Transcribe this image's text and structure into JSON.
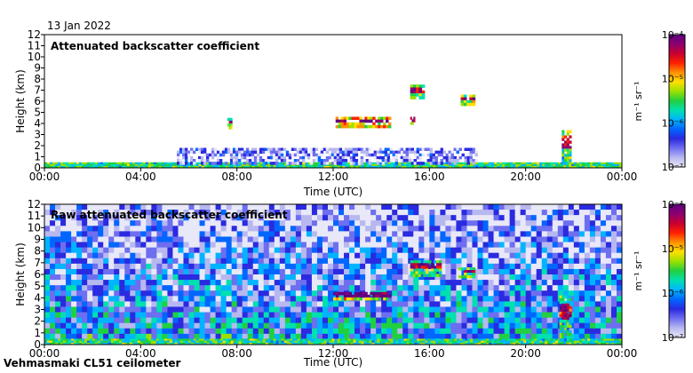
{
  "date": "13 Jan 2022",
  "footer": "Vehmasmaki CL51 ceilometer",
  "colors": {
    "scale": [
      "#e8e8f8",
      "#b8b8f0",
      "#6e6ef0",
      "#2a2ae0",
      "#0066ff",
      "#00b4ff",
      "#00e0b0",
      "#20d040",
      "#9be000",
      "#ffe000",
      "#ff9000",
      "#ff2000",
      "#c80030",
      "#8c0070",
      "#600080"
    ]
  },
  "chart_data": [
    {
      "type": "heatmap",
      "title": "Attenuated backscatter coefficient",
      "xlabel": "Time (UTC)",
      "ylabel": "Height (km)",
      "x_ticks": [
        "00:00",
        "04:00",
        "08:00",
        "12:00",
        "16:00",
        "20:00",
        "00:00"
      ],
      "x_range_hours": [
        0,
        24
      ],
      "y_ticks": [
        "0",
        "1",
        "2",
        "3",
        "4",
        "5",
        "6",
        "7",
        "8",
        "9",
        "10",
        "11",
        "12"
      ],
      "ylim_km": [
        0,
        12
      ],
      "colorbar": {
        "unit_label": "m⁻¹ sr⁻¹",
        "ticks": [
          "10⁻⁴",
          "10⁻⁵",
          "10⁻⁶",
          "10⁻⁷"
        ],
        "range_log10": [
          -7,
          -4
        ]
      },
      "features": [
        {
          "name": "near-surface aerosol layer",
          "t0": 0,
          "t1": 24,
          "h0": 0,
          "h1": 0.5,
          "log_value": -5.6
        },
        {
          "name": "boundary layer haze",
          "t0": 5.5,
          "t1": 18,
          "h0": 0.3,
          "h1": 1.8,
          "log_value": -6.6
        },
        {
          "name": "cloud",
          "t0": 7.6,
          "t1": 7.8,
          "h0": 3.5,
          "h1": 4.5,
          "log_value": -4.5
        },
        {
          "name": "cloud",
          "t0": 12.1,
          "t1": 14.4,
          "h0": 3.6,
          "h1": 4.6,
          "log_value": -4.3
        },
        {
          "name": "cloud",
          "t0": 15.2,
          "t1": 15.4,
          "h0": 3.9,
          "h1": 4.6,
          "log_value": -4.6
        },
        {
          "name": "cloud",
          "t0": 15.2,
          "t1": 15.8,
          "h0": 6.2,
          "h1": 7.5,
          "log_value": -4.6
        },
        {
          "name": "cloud",
          "t0": 17.3,
          "t1": 17.9,
          "h0": 5.6,
          "h1": 6.6,
          "log_value": -4.5
        },
        {
          "name": "precipitation/cloud",
          "t0": 21.5,
          "t1": 21.9,
          "h0": 0.3,
          "h1": 3.4,
          "log_value": -4.8
        }
      ]
    },
    {
      "type": "heatmap",
      "title": "Raw attenuated backscatter coefficient",
      "xlabel": "Time (UTC)",
      "ylabel": "Height (km)",
      "x_ticks": [
        "00:00",
        "04:00",
        "08:00",
        "12:00",
        "16:00",
        "20:00",
        "00:00"
      ],
      "x_range_hours": [
        0,
        24
      ],
      "y_ticks": [
        "0",
        "1",
        "2",
        "3",
        "4",
        "5",
        "6",
        "7",
        "8",
        "9",
        "10",
        "11",
        "12"
      ],
      "ylim_km": [
        0,
        12
      ],
      "colorbar": {
        "unit_label": "m⁻¹ sr⁻¹",
        "ticks": [
          "10⁻⁴",
          "10⁻⁵",
          "10⁻⁶",
          "10⁻⁷"
        ],
        "range_log10": [
          -7,
          -4
        ]
      },
      "features": [
        {
          "name": "noise background",
          "t0": 0,
          "t1": 24,
          "h0": 0,
          "h1": 12,
          "log_value": -6.0
        },
        {
          "name": "near-surface aerosol layer",
          "t0": 0,
          "t1": 24,
          "h0": 0,
          "h1": 0.5,
          "log_value": -5.6
        },
        {
          "name": "cloud",
          "t0": 12.0,
          "t1": 14.4,
          "h0": 3.8,
          "h1": 4.5,
          "log_value": -4.3
        },
        {
          "name": "cloud",
          "t0": 15.2,
          "t1": 16.5,
          "h0": 5.8,
          "h1": 7.2,
          "log_value": -4.7
        },
        {
          "name": "cloud",
          "t0": 17.2,
          "t1": 17.9,
          "h0": 5.7,
          "h1": 6.6,
          "log_value": -4.6
        },
        {
          "name": "precipitation/cloud",
          "t0": 21.4,
          "t1": 21.9,
          "h0": 0.3,
          "h1": 4.2,
          "log_value": -4.8
        }
      ]
    }
  ]
}
